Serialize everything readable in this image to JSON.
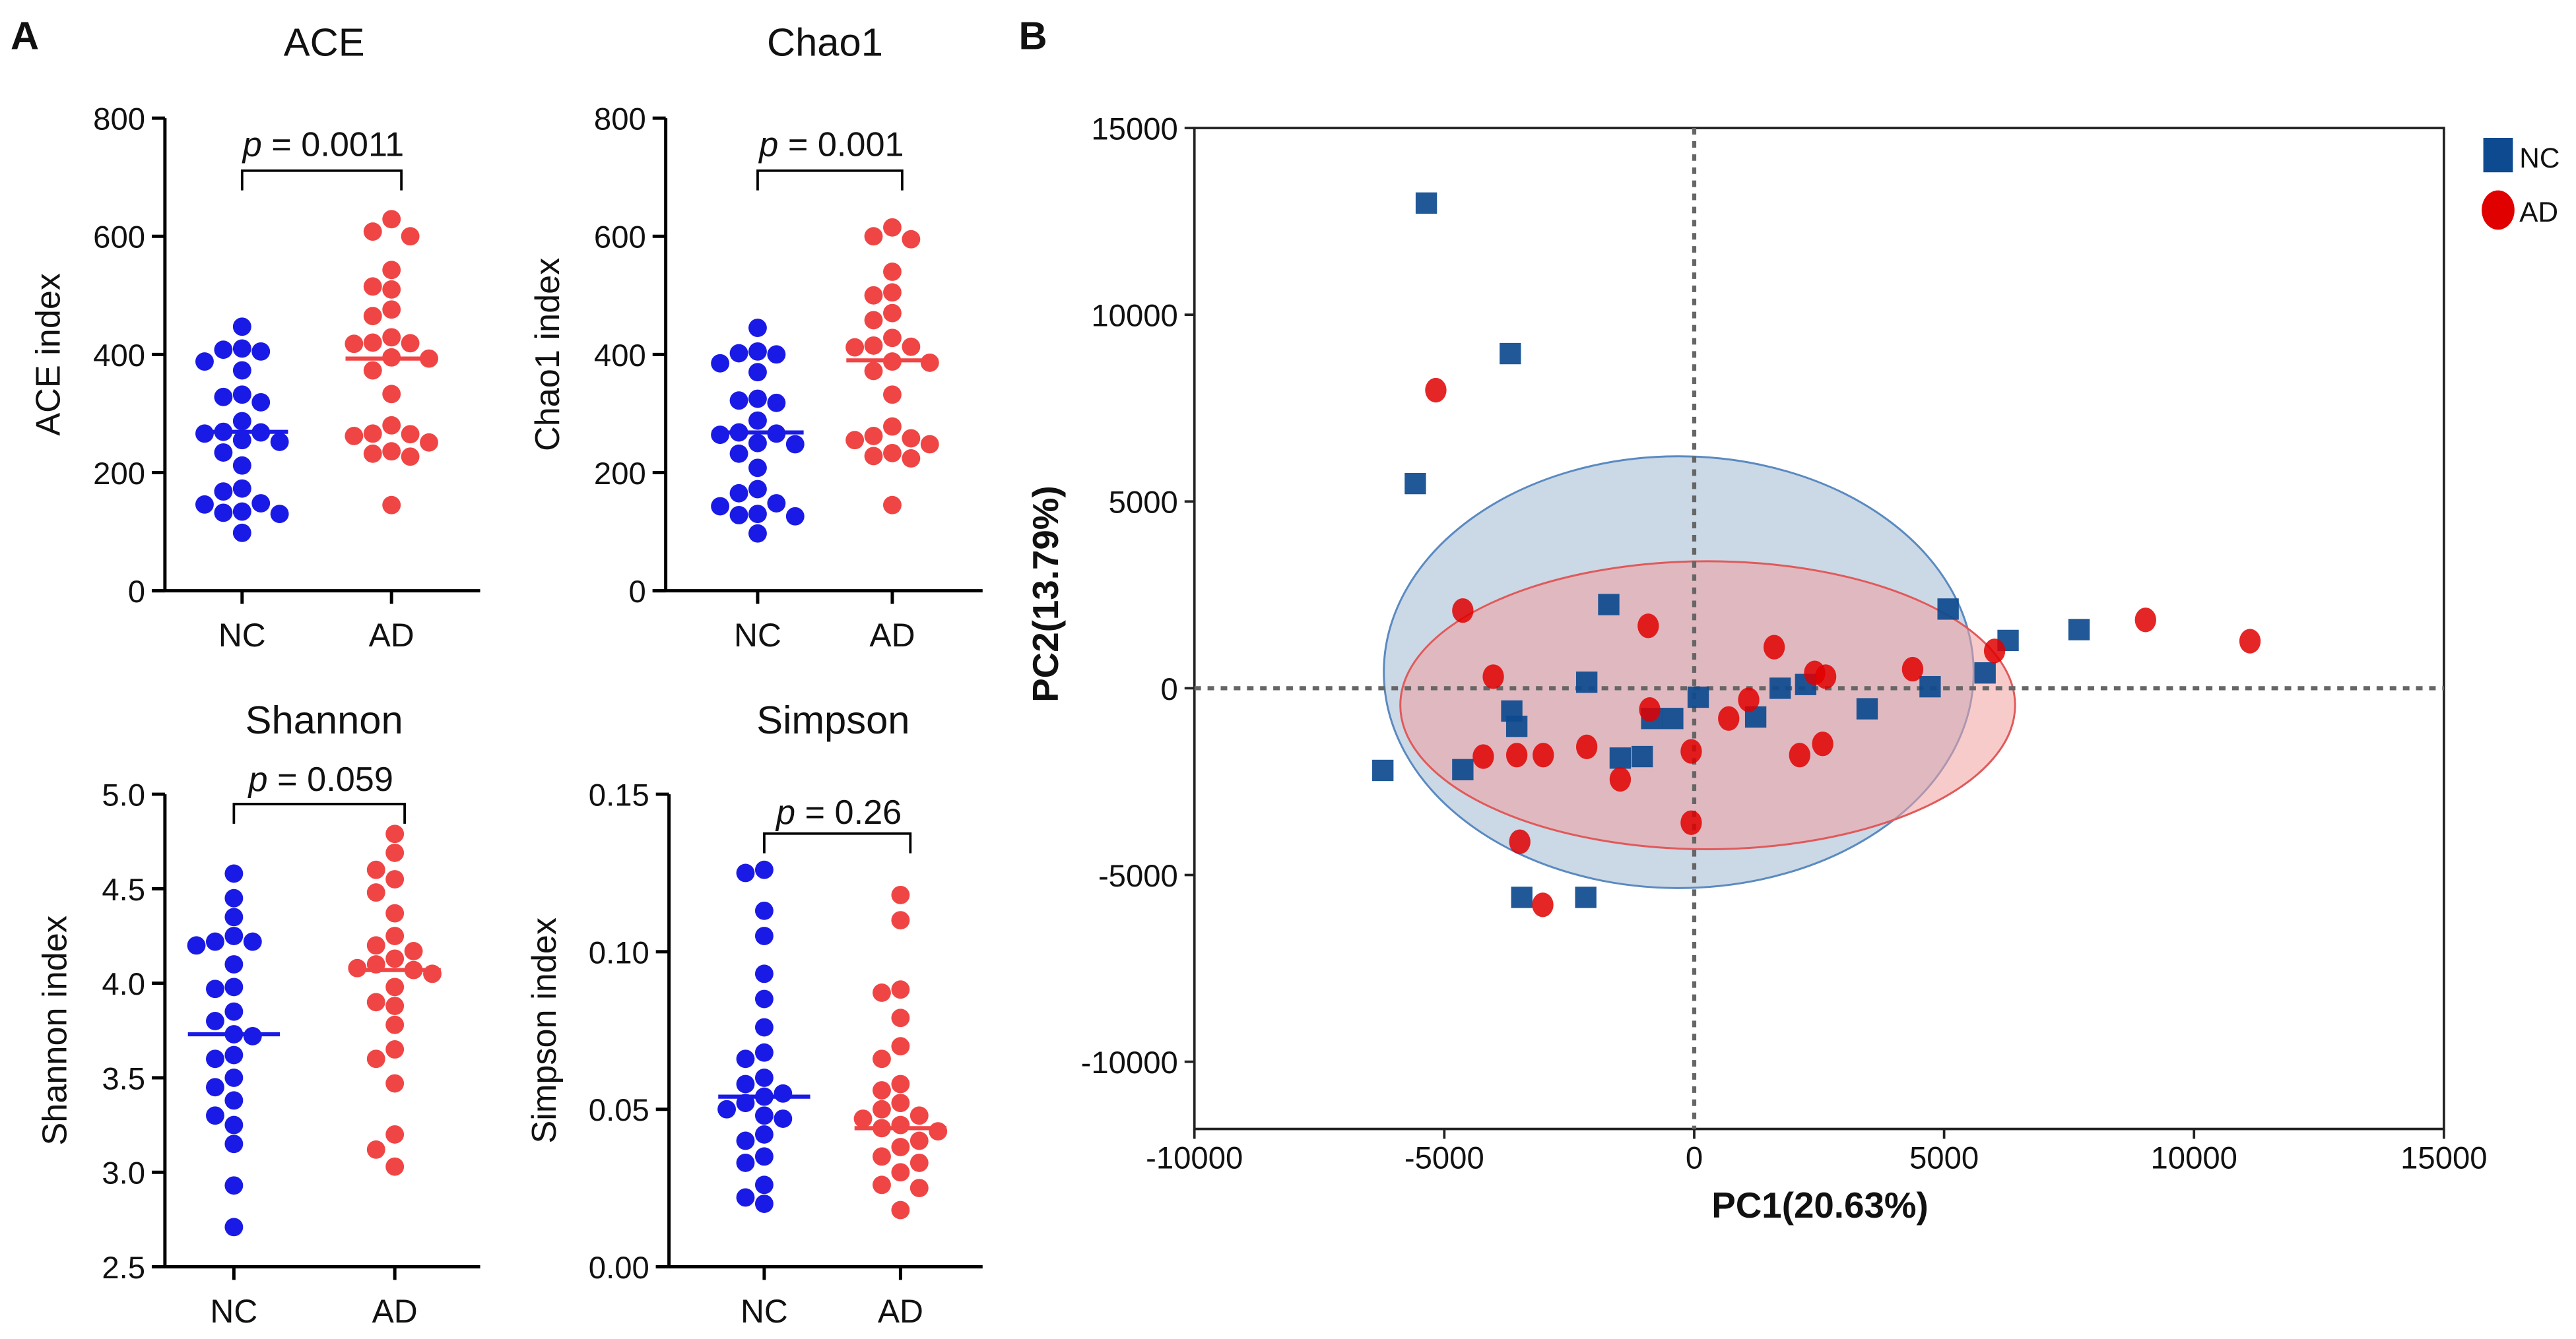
{
  "panel_labels": {
    "a": "A",
    "b": "B"
  },
  "colors": {
    "nc_dot": "#1a1ae6",
    "ad_dot": "#f04545",
    "pca_nc": "#0d4a8f",
    "pca_ad": "#e00000",
    "ell_nc_fill": "#a8bed6",
    "ell_nc_stroke": "#5a8ac0",
    "ell_ad_fill": "#f2a0a0",
    "ell_ad_stroke": "#e05a5a"
  },
  "chart_data": [
    {
      "type": "scatter",
      "subtype": "dot-plot",
      "title": "ACE",
      "ylabel": "ACE index",
      "xlabel": "",
      "categories": [
        "NC",
        "AD"
      ],
      "ylim": [
        0,
        800
      ],
      "yticks": [
        "0",
        "200",
        "400",
        "600",
        "800"
      ],
      "ytick_values": [
        0,
        200,
        400,
        600,
        800
      ],
      "annotation": "p = 0.0011",
      "p_prefix": "p",
      "p_value": "= 0.0011",
      "series": [
        {
          "name": "NC",
          "median": 269,
          "values": [
            447,
            410,
            408,
            405,
            388,
            373,
            332,
            328,
            319,
            287,
            269,
            268,
            266,
            255,
            252,
            234,
            212,
            173,
            168,
            148,
            146,
            134,
            132,
            130,
            98
          ]
        },
        {
          "name": "AD",
          "median": 393,
          "values": [
            629,
            608,
            600,
            543,
            515,
            510,
            476,
            465,
            429,
            420,
            419,
            418,
            395,
            393,
            373,
            333,
            280,
            266,
            265,
            262,
            251,
            236,
            232,
            227,
            145
          ]
        }
      ]
    },
    {
      "type": "scatter",
      "subtype": "dot-plot",
      "title": "Chao1",
      "ylabel": "Chao1 index",
      "xlabel": "",
      "categories": [
        "NC",
        "AD"
      ],
      "ylim": [
        0,
        800
      ],
      "yticks": [
        "0",
        "200",
        "400",
        "600",
        "800"
      ],
      "ytick_values": [
        0,
        200,
        400,
        600,
        800
      ],
      "annotation": "p = 0.001",
      "p_prefix": "p",
      "p_value": "= 0.001",
      "series": [
        {
          "name": "NC",
          "median": 268,
          "values": [
            445,
            405,
            402,
            400,
            385,
            370,
            325,
            322,
            318,
            288,
            268,
            266,
            264,
            250,
            248,
            232,
            208,
            172,
            165,
            148,
            143,
            130,
            128,
            126,
            97
          ]
        },
        {
          "name": "AD",
          "median": 390,
          "values": [
            615,
            600,
            595,
            540,
            505,
            500,
            470,
            458,
            428,
            415,
            413,
            412,
            388,
            386,
            372,
            332,
            278,
            262,
            258,
            255,
            248,
            233,
            228,
            224,
            145
          ]
        }
      ]
    },
    {
      "type": "scatter",
      "subtype": "dot-plot",
      "title": "Shannon",
      "ylabel": "Shannon index",
      "xlabel": "",
      "categories": [
        "NC",
        "AD"
      ],
      "ylim": [
        2.5,
        5.0
      ],
      "yticks": [
        "2.5",
        "3.0",
        "3.5",
        "4.0",
        "4.5",
        "5.0"
      ],
      "ytick_values": [
        2.5,
        3.0,
        3.5,
        4.0,
        4.5,
        5.0
      ],
      "annotation": "p = 0.059",
      "p_prefix": "p",
      "p_value": "= 0.059",
      "series": [
        {
          "name": "NC",
          "median": 3.73,
          "values": [
            4.58,
            4.45,
            4.35,
            4.25,
            4.22,
            4.2,
            4.22,
            4.1,
            3.98,
            3.97,
            3.85,
            3.8,
            3.73,
            3.72,
            3.62,
            3.6,
            3.5,
            3.45,
            3.38,
            3.3,
            3.25,
            3.15,
            2.93,
            2.71
          ]
        },
        {
          "name": "AD",
          "median": 4.07,
          "values": [
            4.79,
            4.69,
            4.6,
            4.55,
            4.48,
            4.37,
            4.25,
            4.2,
            4.17,
            4.13,
            4.1,
            4.08,
            4.07,
            4.05,
            3.98,
            3.9,
            3.88,
            3.78,
            3.65,
            3.6,
            3.47,
            3.2,
            3.12,
            3.03
          ]
        }
      ]
    },
    {
      "type": "scatter",
      "subtype": "dot-plot",
      "title": "Simpson",
      "ylabel": "Simpson index",
      "xlabel": "",
      "categories": [
        "NC",
        "AD"
      ],
      "ylim": [
        0,
        0.15
      ],
      "yticks": [
        "0.00",
        "0.05",
        "0.10",
        "0.15"
      ],
      "ytick_values": [
        0,
        0.05,
        0.1,
        0.15
      ],
      "annotation": "p = 0.26",
      "p_prefix": "p",
      "p_value": "= 0.26",
      "series": [
        {
          "name": "NC",
          "median": 0.054,
          "values": [
            0.126,
            0.125,
            0.113,
            0.105,
            0.093,
            0.085,
            0.076,
            0.068,
            0.066,
            0.06,
            0.058,
            0.055,
            0.054,
            0.052,
            0.05,
            0.048,
            0.047,
            0.042,
            0.04,
            0.035,
            0.033,
            0.026,
            0.022,
            0.02
          ]
        },
        {
          "name": "AD",
          "median": 0.044,
          "values": [
            0.118,
            0.11,
            0.088,
            0.087,
            0.079,
            0.07,
            0.066,
            0.058,
            0.056,
            0.052,
            0.05,
            0.048,
            0.047,
            0.045,
            0.044,
            0.043,
            0.04,
            0.038,
            0.035,
            0.033,
            0.03,
            0.026,
            0.025,
            0.018
          ]
        }
      ]
    },
    {
      "type": "scatter",
      "title": "",
      "xlabel": "PC1(20.63%)",
      "ylabel": "PC2(13.79%)",
      "xlim": [
        -10000,
        15000
      ],
      "ylim": [
        -11800,
        15000
      ],
      "xticks": [
        "-10000",
        "-5000",
        "0",
        "5000",
        "10000",
        "15000"
      ],
      "xtick_values": [
        -10000,
        -5000,
        0,
        5000,
        10000,
        15000
      ],
      "yticks": [
        "-10000",
        "-5000",
        "0",
        "5000",
        "10000",
        "15000"
      ],
      "ytick_values": [
        -10000,
        -5000,
        0,
        5000,
        10000,
        15000
      ],
      "legend": [
        "NC",
        "AD"
      ],
      "legend_position": "top-right",
      "reference_lines": {
        "x": 0,
        "y": 0
      },
      "series": [
        {
          "name": "NC",
          "marker": "square",
          "ellipse": {
            "cx": -310,
            "cy": 430,
            "rx": 5900,
            "ry": 5780
          },
          "points": [
            [
              -5360,
              12990
            ],
            [
              -3680,
              8960
            ],
            [
              -5580,
              5480
            ],
            [
              -6230,
              -2200
            ],
            [
              -3450,
              -5600
            ],
            [
              -2170,
              -5600
            ],
            [
              -4630,
              -2180
            ],
            [
              -3650,
              -610
            ],
            [
              -3550,
              -1020
            ],
            [
              -2150,
              160
            ],
            [
              -1710,
              2240
            ],
            [
              -1480,
              -1870
            ],
            [
              -1040,
              -1830
            ],
            [
              -850,
              -810
            ],
            [
              -430,
              -810
            ],
            [
              80,
              -240
            ],
            [
              1230,
              -770
            ],
            [
              1720,
              0
            ],
            [
              2230,
              100
            ],
            [
              3460,
              -550
            ],
            [
              4720,
              40
            ],
            [
              5080,
              2120
            ],
            [
              5820,
              410
            ],
            [
              6280,
              1280
            ],
            [
              7700,
              1570
            ]
          ]
        },
        {
          "name": "AD",
          "marker": "circle",
          "ellipse": {
            "cx": 270,
            "cy": -455,
            "rx": 6150,
            "ry": 3855
          },
          "points": [
            [
              -5170,
              7980
            ],
            [
              -4630,
              2080
            ],
            [
              -4020,
              310
            ],
            [
              -4220,
              -1830
            ],
            [
              -3550,
              -1790
            ],
            [
              -3020,
              -1790
            ],
            [
              -2150,
              -1570
            ],
            [
              -1480,
              -2440
            ],
            [
              -3490,
              -4110
            ],
            [
              -3030,
              -5800
            ],
            [
              -920,
              1670
            ],
            [
              -890,
              -570
            ],
            [
              -60,
              -1690
            ],
            [
              -60,
              -3600
            ],
            [
              690,
              -810
            ],
            [
              1090,
              -310
            ],
            [
              1600,
              1100
            ],
            [
              2410,
              410
            ],
            [
              2630,
              310
            ],
            [
              2110,
              -1790
            ],
            [
              2570,
              -1490
            ],
            [
              4370,
              510
            ],
            [
              6010,
              1000
            ],
            [
              9030,
              1830
            ],
            [
              11120,
              1260
            ]
          ]
        }
      ]
    }
  ]
}
